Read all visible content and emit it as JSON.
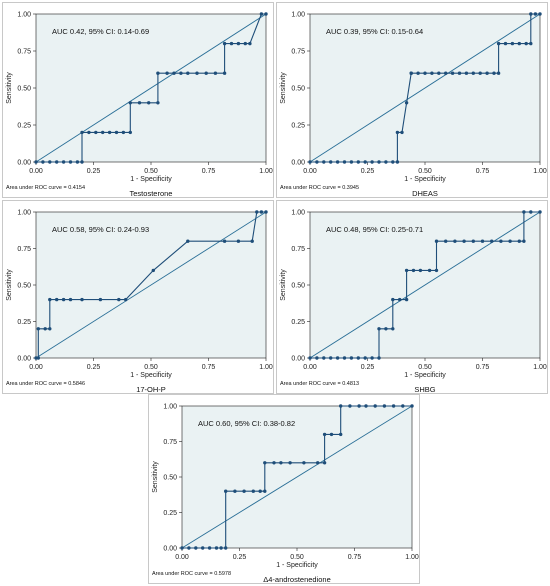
{
  "colors": {
    "curve": "#1f4e79",
    "reference": "#2a6f97",
    "panel_bg": "#eaf2f3",
    "frame": "#c8c8c8",
    "panel_border": "#1a1a1a"
  },
  "chart_data": [
    {
      "type": "line",
      "annotation": "AUC 0.42, 95% CI: 0.14-0.69",
      "xlabel": "1 - Specificity",
      "ylabel": "Sensitivity",
      "area_label": "Area under ROC curve = 0.4154",
      "name": "Testosterone",
      "xlim": [
        0,
        1
      ],
      "ylim": [
        0,
        1
      ],
      "xticks": [
        "0.00",
        "0.25",
        "0.50",
        "0.75",
        "1.00"
      ],
      "yticks": [
        "0.00",
        "0.25",
        "0.50",
        "0.75",
        "1.00"
      ],
      "x": [
        0,
        0.03,
        0.06,
        0.09,
        0.12,
        0.15,
        0.18,
        0.2,
        0.2,
        0.23,
        0.26,
        0.29,
        0.32,
        0.35,
        0.38,
        0.41,
        0.41,
        0.45,
        0.49,
        0.53,
        0.53,
        0.57,
        0.6,
        0.63,
        0.66,
        0.7,
        0.74,
        0.78,
        0.82,
        0.82,
        0.85,
        0.88,
        0.91,
        0.93,
        0.98,
        1
      ],
      "y": [
        0,
        0,
        0,
        0,
        0,
        0,
        0,
        0,
        0.2,
        0.2,
        0.2,
        0.2,
        0.2,
        0.2,
        0.2,
        0.2,
        0.4,
        0.4,
        0.4,
        0.4,
        0.6,
        0.6,
        0.6,
        0.6,
        0.6,
        0.6,
        0.6,
        0.6,
        0.6,
        0.8,
        0.8,
        0.8,
        0.8,
        0.8,
        1,
        1
      ]
    },
    {
      "type": "line",
      "annotation": "AUC 0.39, 95% CI: 0.15-0.64",
      "xlabel": "1 - Specificity",
      "ylabel": "Sensitivity",
      "area_label": "Area under ROC curve = 0.3945",
      "name": "DHEAS",
      "xlim": [
        0,
        1
      ],
      "ylim": [
        0,
        1
      ],
      "xticks": [
        "0.00",
        "0.25",
        "0.50",
        "0.75",
        "1.00"
      ],
      "yticks": [
        "0.00",
        "0.25",
        "0.50",
        "0.75",
        "1.00"
      ],
      "x": [
        0,
        0.03,
        0.06,
        0.09,
        0.12,
        0.15,
        0.18,
        0.21,
        0.24,
        0.27,
        0.3,
        0.33,
        0.36,
        0.38,
        0.38,
        0.4,
        0.42,
        0.44,
        0.44,
        0.47,
        0.5,
        0.53,
        0.56,
        0.59,
        0.62,
        0.65,
        0.68,
        0.71,
        0.74,
        0.77,
        0.8,
        0.82,
        0.82,
        0.85,
        0.88,
        0.91,
        0.94,
        0.96,
        0.96,
        0.98,
        1
      ],
      "y": [
        0,
        0,
        0,
        0,
        0,
        0,
        0,
        0,
        0,
        0,
        0,
        0,
        0,
        0,
        0.2,
        0.2,
        0.4,
        0.6,
        0.6,
        0.6,
        0.6,
        0.6,
        0.6,
        0.6,
        0.6,
        0.6,
        0.6,
        0.6,
        0.6,
        0.6,
        0.6,
        0.6,
        0.8,
        0.8,
        0.8,
        0.8,
        0.8,
        0.8,
        1,
        1,
        1
      ]
    },
    {
      "type": "line",
      "annotation": "AUC 0.58, 95% CI: 0.24-0.93",
      "xlabel": "1 - Specificity",
      "ylabel": "Sensitivity",
      "area_label": "Area under ROC curve = 0.5846",
      "name": "17-OH-P",
      "xlim": [
        0,
        1
      ],
      "ylim": [
        0,
        1
      ],
      "xticks": [
        "0.00",
        "0.25",
        "0.50",
        "0.75",
        "1.00"
      ],
      "yticks": [
        "0.00",
        "0.25",
        "0.50",
        "0.75",
        "1.00"
      ],
      "x": [
        0,
        0.01,
        0.01,
        0.04,
        0.06,
        0.06,
        0.09,
        0.12,
        0.15,
        0.2,
        0.28,
        0.36,
        0.39,
        0.51,
        0.66,
        0.82,
        0.88,
        0.94,
        0.96,
        0.98,
        1
      ],
      "y": [
        0,
        0,
        0.2,
        0.2,
        0.2,
        0.4,
        0.4,
        0.4,
        0.4,
        0.4,
        0.4,
        0.4,
        0.4,
        0.6,
        0.8,
        0.8,
        0.8,
        0.8,
        1,
        1,
        1
      ]
    },
    {
      "type": "line",
      "annotation": "AUC 0.48, 95% CI: 0.25-0.71",
      "xlabel": "1 - Specificity",
      "ylabel": "Sensitivity",
      "area_label": "Area under ROC curve = 0.4813",
      "name": "SHBG",
      "xlim": [
        0,
        1
      ],
      "ylim": [
        0,
        1
      ],
      "xticks": [
        "0.00",
        "0.25",
        "0.50",
        "0.75",
        "1.00"
      ],
      "yticks": [
        "0.00",
        "0.25",
        "0.50",
        "0.75",
        "1.00"
      ],
      "x": [
        0,
        0.03,
        0.06,
        0.09,
        0.12,
        0.15,
        0.18,
        0.21,
        0.24,
        0.27,
        0.3,
        0.3,
        0.33,
        0.36,
        0.36,
        0.39,
        0.42,
        0.42,
        0.45,
        0.48,
        0.52,
        0.55,
        0.55,
        0.59,
        0.63,
        0.67,
        0.71,
        0.75,
        0.79,
        0.83,
        0.87,
        0.91,
        0.93,
        0.93,
        0.96,
        1
      ],
      "y": [
        0,
        0,
        0,
        0,
        0,
        0,
        0,
        0,
        0,
        0,
        0,
        0.2,
        0.2,
        0.2,
        0.4,
        0.4,
        0.4,
        0.6,
        0.6,
        0.6,
        0.6,
        0.6,
        0.8,
        0.8,
        0.8,
        0.8,
        0.8,
        0.8,
        0.8,
        0.8,
        0.8,
        0.8,
        0.8,
        1,
        1,
        1
      ]
    },
    {
      "type": "line",
      "annotation": "AUC 0.60, 95% CI: 0.38-0.82",
      "xlabel": "1 - Specificity",
      "ylabel": "Sensitivity",
      "area_label": "Area under ROC curve = 0.5978",
      "name": "Δ4-androstenedione",
      "xlim": [
        0,
        1
      ],
      "ylim": [
        0,
        1
      ],
      "xticks": [
        "0.00",
        "0.25",
        "0.50",
        "0.75",
        "1.00"
      ],
      "yticks": [
        "0.00",
        "0.25",
        "0.50",
        "0.75",
        "1.00"
      ],
      "x": [
        0,
        0.03,
        0.06,
        0.09,
        0.12,
        0.15,
        0.17,
        0.19,
        0.19,
        0.23,
        0.27,
        0.31,
        0.34,
        0.36,
        0.36,
        0.4,
        0.43,
        0.47,
        0.53,
        0.59,
        0.62,
        0.62,
        0.65,
        0.69,
        0.69,
        0.73,
        0.77,
        0.8,
        0.84,
        0.88,
        0.92,
        0.96,
        1
      ],
      "y": [
        0,
        0,
        0,
        0,
        0,
        0,
        0,
        0,
        0.4,
        0.4,
        0.4,
        0.4,
        0.4,
        0.4,
        0.6,
        0.6,
        0.6,
        0.6,
        0.6,
        0.6,
        0.6,
        0.8,
        0.8,
        0.8,
        1,
        1,
        1,
        1,
        1,
        1,
        1,
        1,
        1
      ]
    }
  ]
}
